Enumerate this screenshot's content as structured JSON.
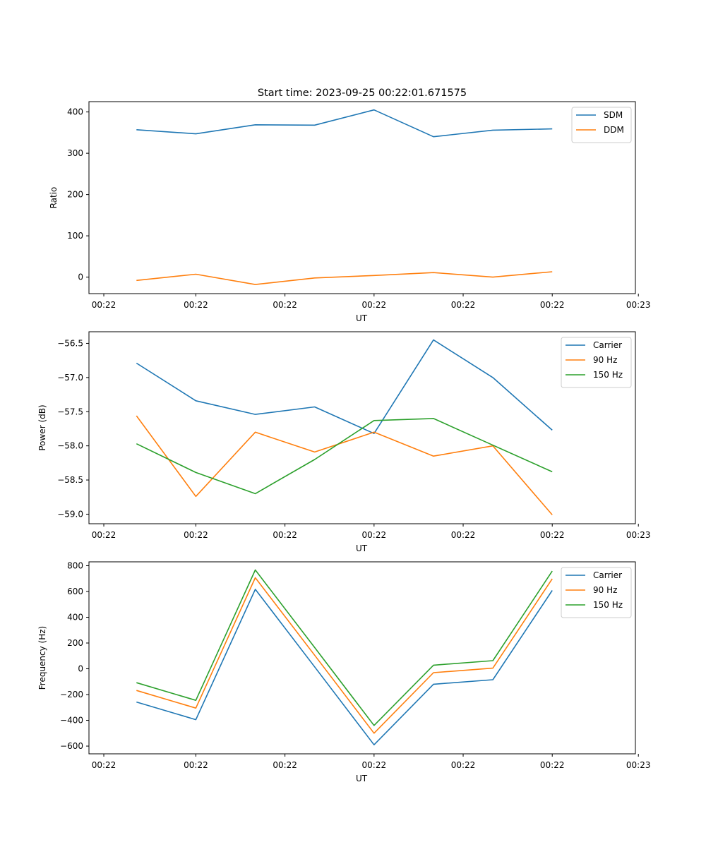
{
  "figure_title": "Start time: 2023-09-25 00:22:01.671575",
  "chart_data": [
    {
      "type": "line",
      "title": "Start time: 2023-09-25 00:22:01.671575",
      "xlabel": "UT",
      "ylabel": "Ratio",
      "x": [
        1,
        2,
        3,
        4,
        5,
        6,
        7,
        8
      ],
      "xlim": [
        0.2,
        9.4
      ],
      "xticks": [
        0.45,
        2,
        3.5,
        5,
        6.5,
        8,
        9.45
      ],
      "xtick_labels": [
        "00:22",
        "00:22",
        "00:22",
        "00:22",
        "00:22",
        "00:22",
        "00:23"
      ],
      "ylim": [
        -40,
        425
      ],
      "yticks": [
        0,
        100,
        200,
        300,
        400
      ],
      "ytick_labels": [
        "0",
        "100",
        "200",
        "300",
        "400"
      ],
      "legend_position": "top-right",
      "series": [
        {
          "name": "SDM",
          "color": "#1f77b4",
          "values": [
            357,
            347,
            369,
            368,
            405,
            340,
            356,
            359
          ]
        },
        {
          "name": "DDM",
          "color": "#ff7f0e",
          "values": [
            -8,
            7,
            -18,
            -2,
            4,
            11,
            0,
            13
          ]
        }
      ]
    },
    {
      "type": "line",
      "title": "",
      "xlabel": "UT",
      "ylabel": "Power (dB)",
      "x": [
        1,
        2,
        3,
        4,
        5,
        6,
        7,
        8
      ],
      "xlim": [
        0.2,
        9.4
      ],
      "xticks": [
        0.45,
        2,
        3.5,
        5,
        6.5,
        8,
        9.45
      ],
      "xtick_labels": [
        "00:22",
        "00:22",
        "00:22",
        "00:22",
        "00:22",
        "00:22",
        "00:23"
      ],
      "ylim": [
        -59.14,
        -56.33
      ],
      "yticks": [
        -56.5,
        -57.0,
        -57.5,
        -58.0,
        -58.5,
        -59.0
      ],
      "ytick_labels": [
        "−56.5",
        "−57.0",
        "−57.5",
        "−58.0",
        "−58.5",
        "−59.0"
      ],
      "legend_position": "top-right",
      "series": [
        {
          "name": "Carrier",
          "color": "#1f77b4",
          "values": [
            -56.79,
            -57.34,
            -57.54,
            -57.43,
            -57.82,
            -56.45,
            -57.0,
            -57.77
          ]
        },
        {
          "name": "90 Hz",
          "color": "#ff7f0e",
          "values": [
            -57.56,
            -58.74,
            -57.8,
            -58.09,
            -57.8,
            -58.15,
            -58.0,
            -59.01
          ]
        },
        {
          "name": "150 Hz",
          "color": "#2ca02c",
          "values": [
            -57.97,
            -58.39,
            -58.7,
            -58.2,
            -57.63,
            -57.6,
            -57.99,
            -58.38
          ]
        }
      ]
    },
    {
      "type": "line",
      "title": "",
      "xlabel": "UT",
      "ylabel": "Frequency (Hz)",
      "x": [
        1,
        2,
        3,
        4,
        5,
        6,
        7,
        8
      ],
      "xlim": [
        0.2,
        9.4
      ],
      "xticks": [
        0.45,
        2,
        3.5,
        5,
        6.5,
        8,
        9.45
      ],
      "xtick_labels": [
        "00:22",
        "00:22",
        "00:22",
        "00:22",
        "00:22",
        "00:22",
        "00:23"
      ],
      "ylim": [
        -660,
        830
      ],
      "yticks": [
        800,
        600,
        400,
        200,
        0,
        -200,
        -400,
        -600
      ],
      "ytick_labels": [
        "800",
        "600",
        "400",
        "200",
        "0",
        "−200",
        "−400",
        "−600"
      ],
      "legend_position": "top-right",
      "series": [
        {
          "name": "Carrier",
          "color": "#1f77b4",
          "values": [
            -258,
            -395,
            617,
            15,
            -590,
            -120,
            -85,
            608
          ]
        },
        {
          "name": "90 Hz",
          "color": "#ff7f0e",
          "values": [
            -168,
            -305,
            707,
            105,
            -500,
            -30,
            5,
            698
          ]
        },
        {
          "name": "150 Hz",
          "color": "#2ca02c",
          "values": [
            -108,
            -245,
            767,
            165,
            -440,
            28,
            63,
            758
          ]
        }
      ]
    }
  ]
}
